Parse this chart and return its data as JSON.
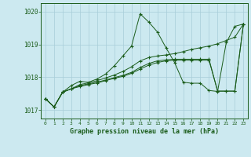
{
  "title": "Graphe pression niveau de la mer (hPa)",
  "hours": [
    0,
    1,
    2,
    3,
    4,
    5,
    6,
    7,
    8,
    9,
    10,
    11,
    12,
    13,
    14,
    15,
    16,
    17,
    18,
    19,
    20,
    21,
    22,
    23
  ],
  "ylim": [
    1016.75,
    1020.25
  ],
  "yticks": [
    1017,
    1018,
    1019,
    1020
  ],
  "background_color": "#cce9f0",
  "grid_color": "#a8cdd8",
  "line_color": "#1a5c1a",
  "s1": [
    1017.35,
    1017.1,
    1017.55,
    1017.75,
    1017.88,
    1017.85,
    1017.95,
    1018.1,
    1018.35,
    1018.65,
    1018.95,
    1019.93,
    1019.68,
    1019.38,
    1018.9,
    1018.45,
    1017.85,
    1017.82,
    1017.82,
    1017.6,
    1017.57,
    1019.05,
    1019.55,
    1019.62
  ],
  "s2": [
    1017.35,
    1017.1,
    1017.55,
    1017.65,
    1017.78,
    1017.83,
    1017.9,
    1017.98,
    1018.07,
    1018.18,
    1018.32,
    1018.5,
    1018.6,
    1018.65,
    1018.68,
    1018.72,
    1018.78,
    1018.85,
    1018.9,
    1018.95,
    1019.02,
    1019.12,
    1019.22,
    1019.62
  ],
  "s3": [
    1017.35,
    1017.1,
    1017.55,
    1017.65,
    1017.75,
    1017.8,
    1017.85,
    1017.92,
    1017.99,
    1018.06,
    1018.15,
    1018.3,
    1018.42,
    1018.5,
    1018.53,
    1018.55,
    1018.55,
    1018.55,
    1018.55,
    1018.55,
    1017.58,
    1017.58,
    1017.58,
    1019.62
  ],
  "s4": [
    1017.35,
    1017.1,
    1017.55,
    1017.65,
    1017.72,
    1017.78,
    1017.83,
    1017.9,
    1017.97,
    1018.03,
    1018.12,
    1018.25,
    1018.37,
    1018.45,
    1018.5,
    1018.52,
    1018.52,
    1018.52,
    1018.52,
    1018.52,
    1017.58,
    1017.58,
    1017.58,
    1019.62
  ]
}
